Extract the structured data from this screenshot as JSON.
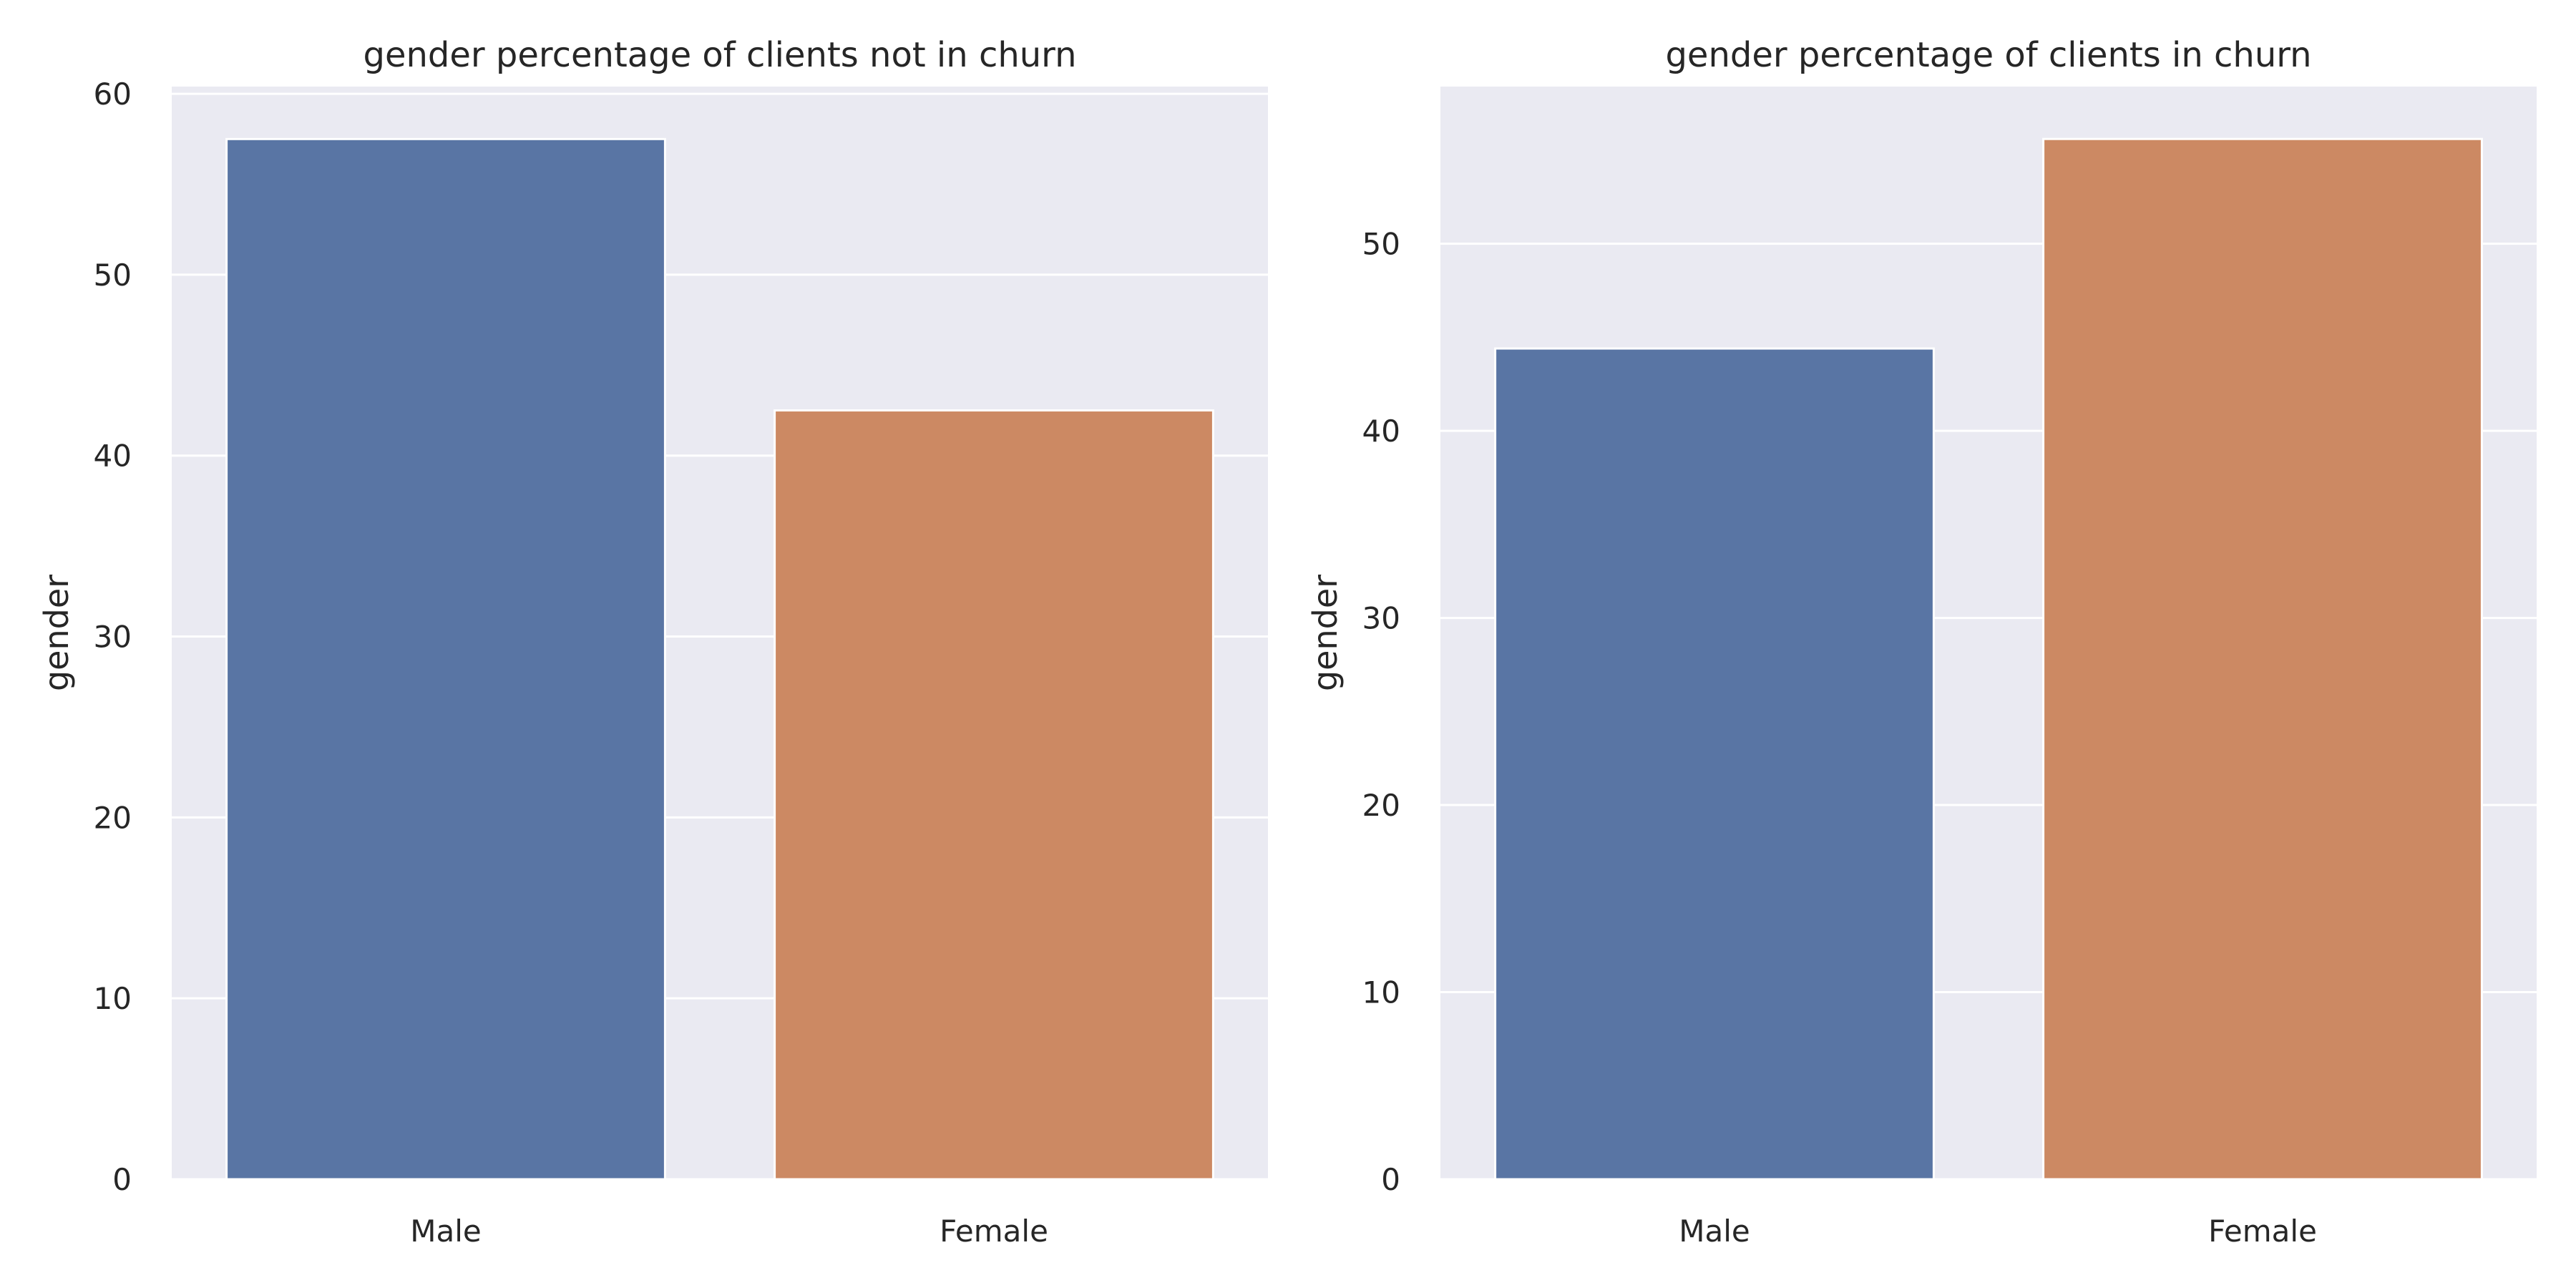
{
  "chart_data": [
    {
      "type": "bar",
      "title": "gender percentage of clients not in churn",
      "xlabel": "",
      "ylabel": "gender",
      "categories": [
        "Male",
        "Female"
      ],
      "values": [
        57.5,
        42.5
      ],
      "ylim": [
        0,
        60.4
      ],
      "yticks": [
        0,
        10,
        20,
        30,
        40,
        50,
        60
      ],
      "colors": [
        "#5975a4",
        "#cc8963"
      ],
      "grid": true,
      "background": "#eaeaf2"
    },
    {
      "type": "bar",
      "title": "gender percentage of clients in churn",
      "xlabel": "",
      "ylabel": "gender",
      "categories": [
        "Male",
        "Female"
      ],
      "values": [
        44.4,
        55.6
      ],
      "ylim": [
        0,
        58.4
      ],
      "yticks": [
        0,
        10,
        20,
        30,
        40,
        50
      ],
      "colors": [
        "#5975a4",
        "#cc8963"
      ],
      "grid": true,
      "background": "#eaeaf2"
    }
  ]
}
